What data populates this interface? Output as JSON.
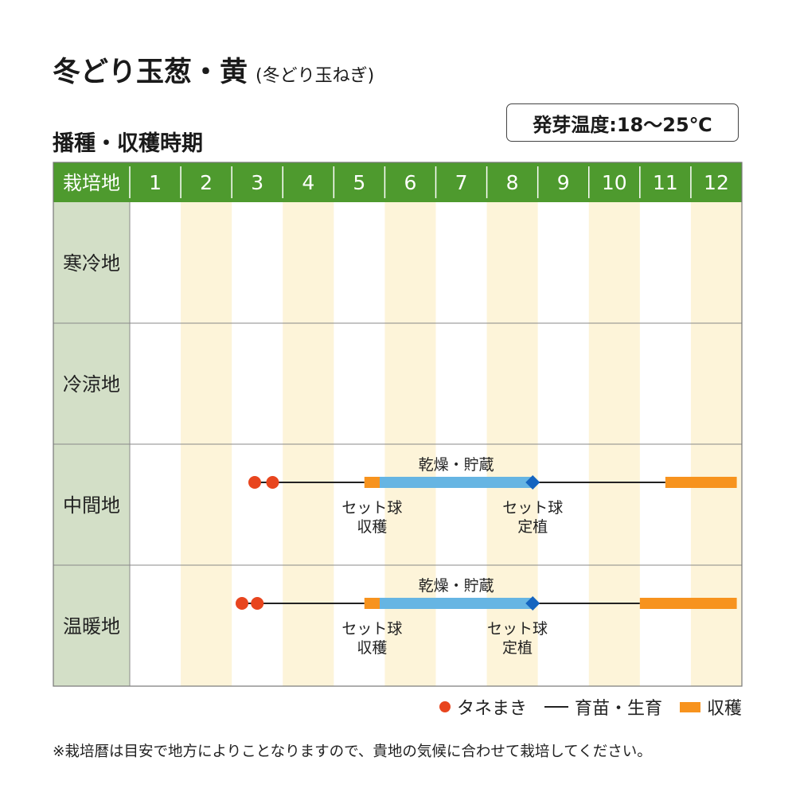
{
  "title": "冬どり玉葱・黄",
  "subtitle": "(冬どり玉ねぎ)",
  "section_title": "播種・収穫時期",
  "temperature_badge": "発芽温度:18～25℃",
  "legend": {
    "sowing": "タネまき",
    "growing": "育苗・生育",
    "harvest": "収穫"
  },
  "footnote": "※栽培暦は目安で地方によりことなりますので、貴地の気候に合わせて栽培してください。",
  "colors": {
    "header_green": "#4e9a2e",
    "region_column": "#d3dfc7",
    "alt_month_band": "#fdf4d9",
    "sowing_dot": "#e8451e",
    "harvest_bar": "#f7931e",
    "storage_bar": "#66b5e3",
    "planting_diamond": "#1565c0",
    "growth_line": "#222222"
  },
  "chart_data": {
    "type": "gantt",
    "header_label": "栽培地",
    "months": [
      "1",
      "2",
      "3",
      "4",
      "5",
      "6",
      "7",
      "8",
      "9",
      "10",
      "11",
      "12"
    ],
    "regions": [
      {
        "name": "寒冷地",
        "events": []
      },
      {
        "name": "冷涼地",
        "events": []
      },
      {
        "name": "中間地",
        "events": [
          {
            "kind": "sowing",
            "at": [
              3.45,
              3.8
            ]
          },
          {
            "kind": "growth",
            "start": 3.45,
            "end": 5.6
          },
          {
            "kind": "harvest",
            "start": 5.6,
            "end": 5.9
          },
          {
            "kind": "storage",
            "start": 5.9,
            "end": 8.9,
            "label": "乾燥・貯蔵"
          },
          {
            "kind": "planting",
            "at": 8.9
          },
          {
            "kind": "growth",
            "start": 8.9,
            "end": 11.5
          },
          {
            "kind": "harvest",
            "start": 11.5,
            "end": 12.9
          },
          {
            "kind": "note",
            "at": 5.75,
            "label_lines": [
              "セット球",
              "収穫"
            ]
          },
          {
            "kind": "note",
            "at": 8.9,
            "label_lines": [
              "セット球",
              "定植"
            ]
          }
        ]
      },
      {
        "name": "温暖地",
        "events": [
          {
            "kind": "sowing",
            "at": [
              3.2,
              3.5
            ]
          },
          {
            "kind": "growth",
            "start": 3.2,
            "end": 5.6
          },
          {
            "kind": "harvest",
            "start": 5.6,
            "end": 5.9
          },
          {
            "kind": "storage",
            "start": 5.9,
            "end": 8.9,
            "label": "乾燥・貯蔵"
          },
          {
            "kind": "planting",
            "at": 8.9
          },
          {
            "kind": "growth",
            "start": 8.9,
            "end": 11.0
          },
          {
            "kind": "harvest",
            "start": 11.0,
            "end": 12.9
          },
          {
            "kind": "note",
            "at": 5.75,
            "label_lines": [
              "セット球",
              "収穫"
            ]
          },
          {
            "kind": "note",
            "at": 8.6,
            "label_lines": [
              "セット球",
              "定植"
            ]
          }
        ]
      }
    ]
  }
}
